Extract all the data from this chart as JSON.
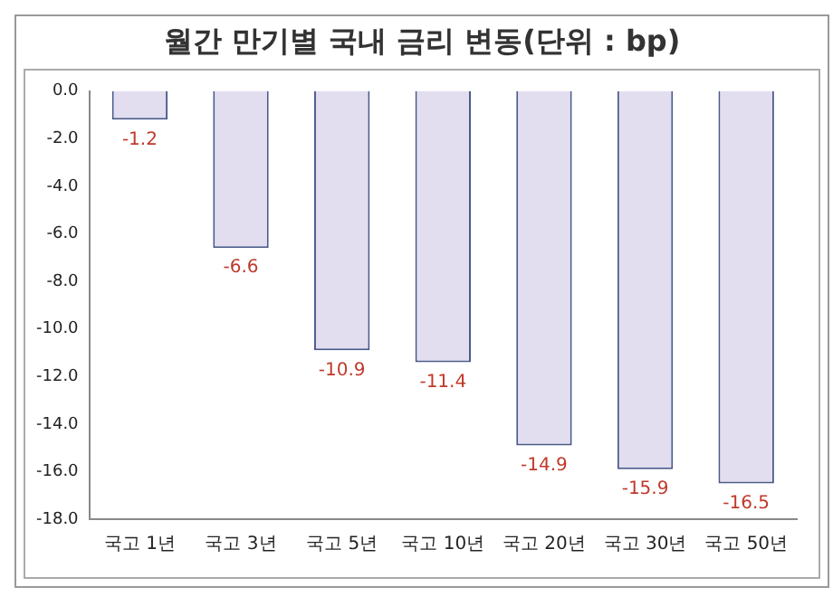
{
  "chart_data": {
    "type": "bar",
    "title": "월간 만기별 국내 금리 변동(단위 : bp)",
    "categories": [
      "국고 1년",
      "국고 3년",
      "국고 5년",
      "국고 10년",
      "국고 20년",
      "국고 30년",
      "국고 50년"
    ],
    "values": [
      -1.2,
      -6.6,
      -10.9,
      -11.4,
      -14.9,
      -15.9,
      -16.5
    ],
    "color": "#e2def0",
    "ylim": [
      -18,
      0
    ],
    "yticks": [
      {
        "value": 0,
        "label": "0.0"
      },
      {
        "value": -2,
        "label": "-2.0"
      },
      {
        "value": -4,
        "label": "-4.0"
      },
      {
        "value": -6,
        "label": "-6.0"
      },
      {
        "value": -8,
        "label": "-8.0"
      },
      {
        "value": -10,
        "label": "-10.0"
      },
      {
        "value": -12,
        "label": "-12.0"
      },
      {
        "value": -14,
        "label": "-14.0"
      },
      {
        "value": -16,
        "label": "-16.0"
      },
      {
        "value": -18,
        "label": "-18.0"
      }
    ],
    "data_labels": true,
    "grid": false,
    "legend": false
  }
}
